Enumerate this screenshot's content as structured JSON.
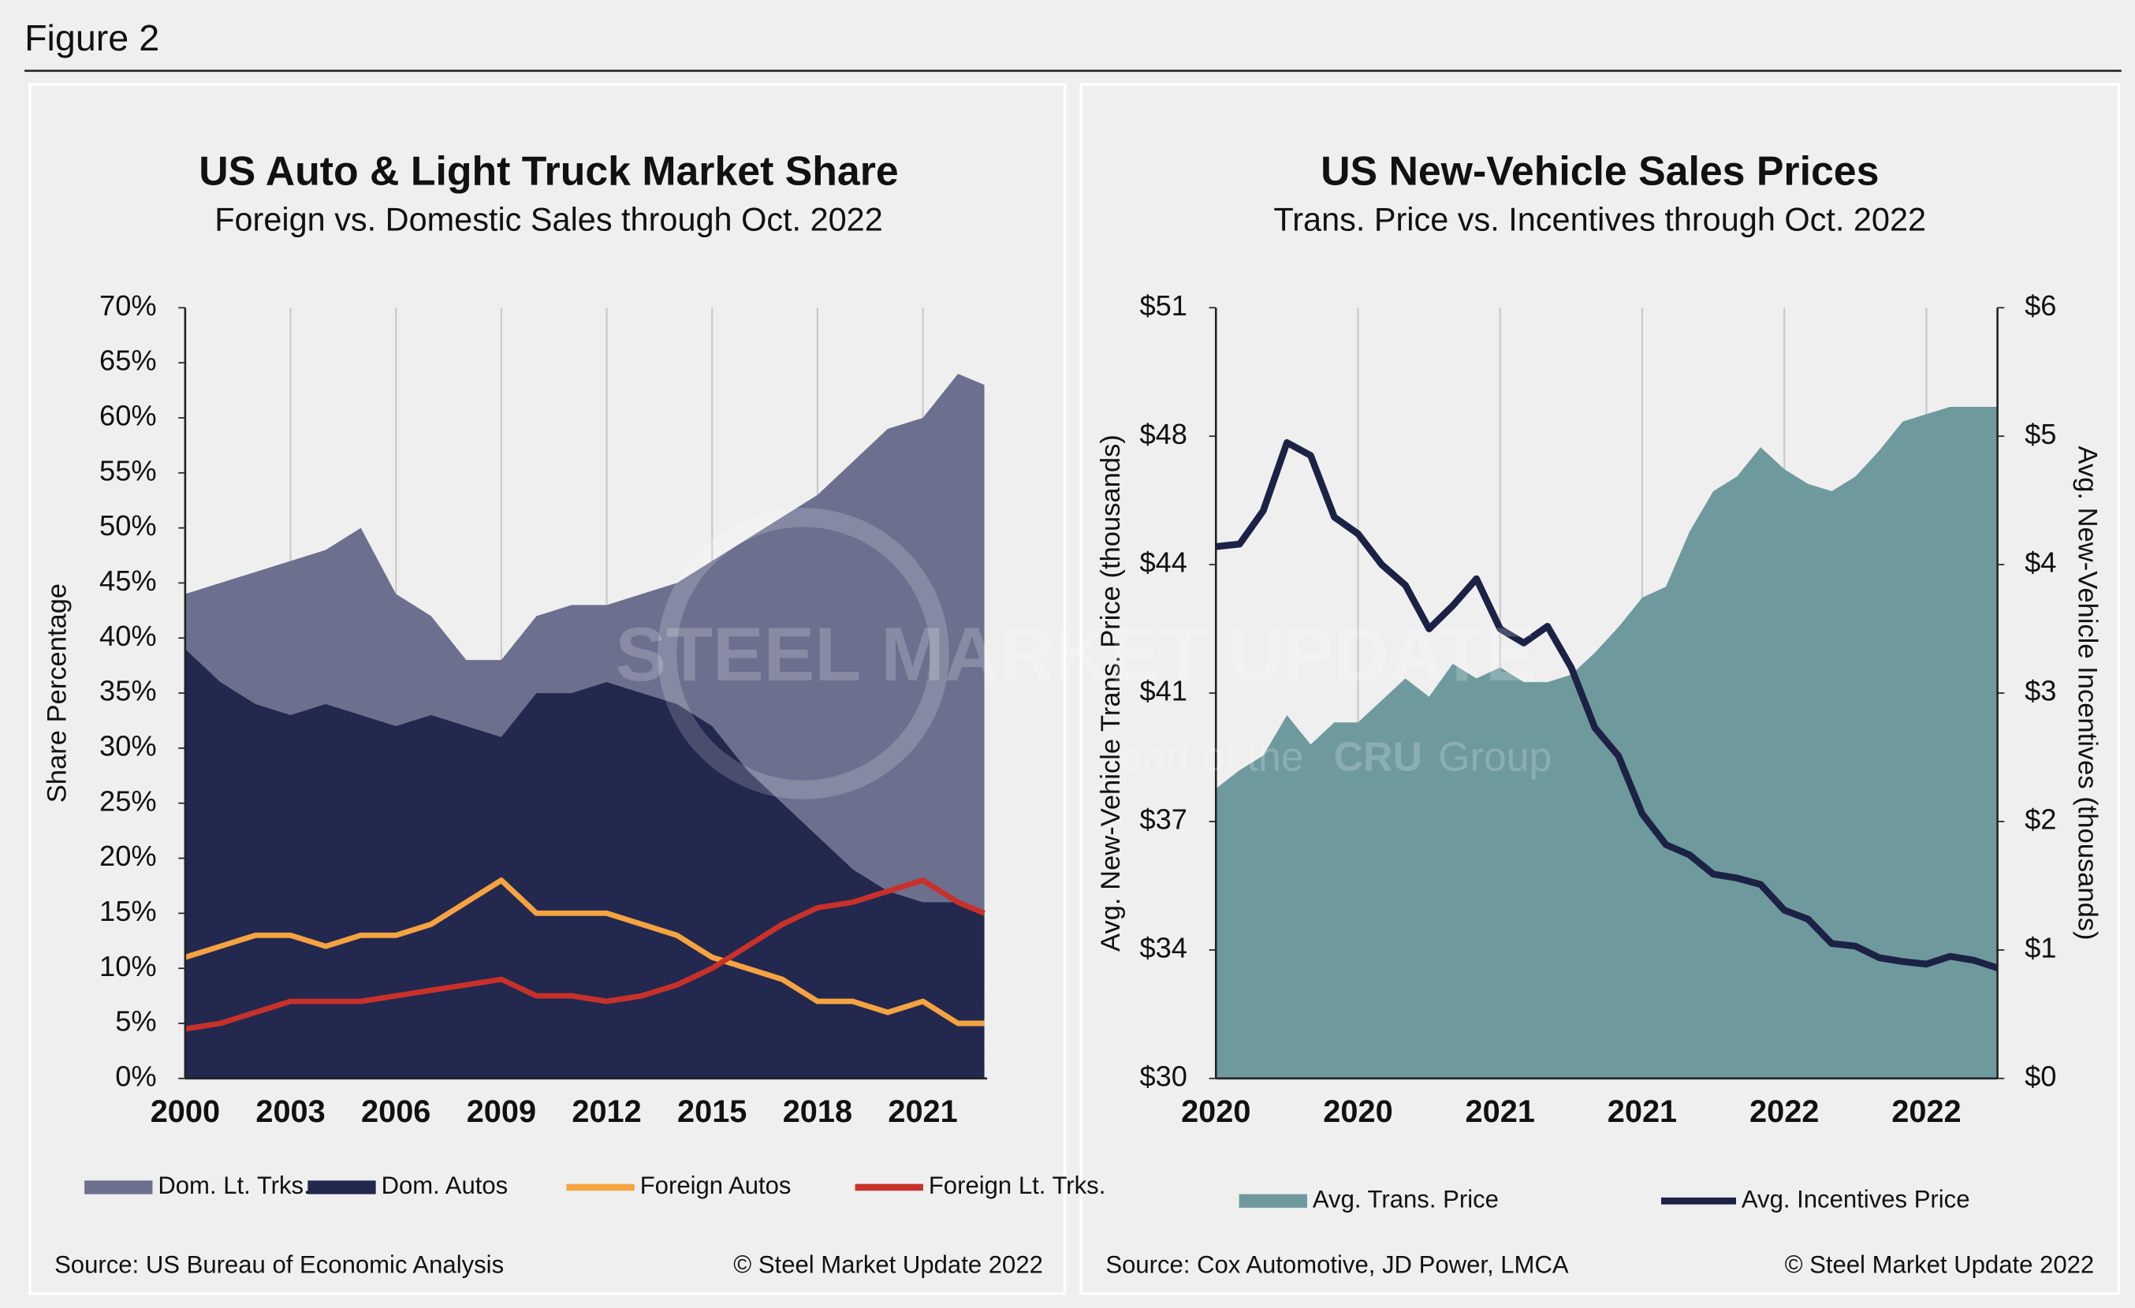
{
  "figure_label": "Figure 2",
  "watermark": {
    "title": "STEEL MARKET UPDATE",
    "sub": "part of the",
    "brand": "CRU",
    "group": "Group"
  },
  "chart_data": [
    {
      "type": "area",
      "title": "US Auto & Light Truck Market Share",
      "subtitle": "Foreign vs. Domestic Sales through Oct. 2022",
      "y_label": "Share Percentage",
      "source": "Source: US Bureau of Economic Analysis",
      "copyright": "© Steel Market Update 2022",
      "grid": "x",
      "x": [
        2000,
        2001,
        2002,
        2003,
        2004,
        2005,
        2006,
        2007,
        2008,
        2009,
        2010,
        2011,
        2012,
        2013,
        2014,
        2015,
        2016,
        2017,
        2018,
        2019,
        2020,
        2021,
        2022,
        2022.75
      ],
      "xlim": [
        2000,
        2022.83
      ],
      "xticks": [
        2000,
        2003,
        2006,
        2009,
        2012,
        2015,
        2018,
        2021
      ],
      "ylim": [
        0,
        70
      ],
      "yticks": [
        {
          "value": 0,
          "label": "0%"
        },
        {
          "value": 5,
          "label": "5%"
        },
        {
          "value": 10,
          "label": "10%"
        },
        {
          "value": 15,
          "label": "15%"
        },
        {
          "value": 20,
          "label": "20%"
        },
        {
          "value": 25,
          "label": "25%"
        },
        {
          "value": 30,
          "label": "30%"
        },
        {
          "value": 35,
          "label": "35%"
        },
        {
          "value": 40,
          "label": "40%"
        },
        {
          "value": 45,
          "label": "45%"
        },
        {
          "value": 50,
          "label": "50%"
        },
        {
          "value": 55,
          "label": "55%"
        },
        {
          "value": 60,
          "label": "60%"
        },
        {
          "value": 65,
          "label": "65%"
        },
        {
          "value": 70,
          "label": "70%"
        }
      ],
      "series": [
        {
          "name": "Dom. Lt. Trks.",
          "style": "area",
          "color": "#6c6f8e",
          "values": [
            44,
            45,
            46,
            47,
            48,
            50,
            44,
            42,
            38,
            38,
            42,
            43,
            43,
            44,
            45,
            47,
            49,
            51,
            53,
            56,
            59,
            60,
            64,
            63
          ]
        },
        {
          "name": "Dom. Autos",
          "style": "area",
          "color": "#23284f",
          "values": [
            39,
            36,
            34,
            33,
            34,
            33,
            32,
            33,
            32,
            31,
            35,
            35,
            36,
            35,
            34,
            32,
            28,
            25,
            22,
            19,
            17,
            16,
            16,
            15
          ]
        },
        {
          "name": "Foreign Autos",
          "style": "line",
          "color": "#f5a340",
          "values": [
            11,
            12,
            13,
            13,
            12,
            13,
            13,
            14,
            16,
            18,
            15,
            15,
            15,
            14,
            13,
            11,
            10,
            9,
            7,
            7,
            6,
            7,
            5,
            5
          ]
        },
        {
          "name": "Foreign Lt. Trks.",
          "style": "line",
          "color": "#c8312a",
          "values": [
            4.5,
            5,
            6,
            7,
            7,
            7,
            7.5,
            8,
            8.5,
            9,
            7.5,
            7.5,
            7,
            7.5,
            8.5,
            10,
            12,
            14,
            15.5,
            16,
            17,
            18,
            16,
            15
          ]
        }
      ]
    },
    {
      "type": "area",
      "title": "US New-Vehicle Sales Prices",
      "subtitle": "Trans. Price vs. Incentives through Oct. 2022",
      "y_label": "Avg. New-Vehicle Trans. Price (thousands)",
      "y2_label": "Avg. New-Vehicle Incentives (thousands)",
      "source": "Source: Cox Automotive, JD Power, LMCA",
      "copyright": "© Steel Market Update 2022",
      "grid": "x",
      "categories": [
        "2020",
        null,
        null,
        null,
        null,
        null,
        "2020",
        null,
        null,
        null,
        null,
        null,
        "2021",
        null,
        null,
        null,
        null,
        null,
        "2021",
        null,
        null,
        null,
        null,
        null,
        "2022",
        null,
        null,
        null,
        null,
        null,
        "2022",
        null,
        null,
        null
      ],
      "ylim": [
        30,
        51
      ],
      "yticks": [
        {
          "value": 30,
          "label": "$30"
        },
        {
          "value": 33.5,
          "label": "$34"
        },
        {
          "value": 37,
          "label": "$37"
        },
        {
          "value": 40.5,
          "label": "$41"
        },
        {
          "value": 44,
          "label": "$44"
        },
        {
          "value": 47.5,
          "label": "$48"
        },
        {
          "value": 51,
          "label": "$51"
        }
      ],
      "y2lim": [
        0,
        6
      ],
      "y2ticks": [
        {
          "value": 0,
          "label": "$0"
        },
        {
          "value": 1,
          "label": "$1"
        },
        {
          "value": 2,
          "label": "$2"
        },
        {
          "value": 3,
          "label": "$3"
        },
        {
          "value": 4,
          "label": "$4"
        },
        {
          "value": 5,
          "label": "$5"
        },
        {
          "value": 6,
          "label": "$6"
        }
      ],
      "series": [
        {
          "name": "Avg. Trans. Price",
          "style": "area",
          "color": "#6f9a9d",
          "values": [
            37.9,
            38.4,
            38.8,
            39.9,
            39.1,
            39.7,
            39.7,
            40.3,
            40.9,
            40.4,
            41.3,
            40.9,
            41.2,
            40.8,
            40.8,
            41.0,
            41.6,
            42.3,
            43.1,
            43.4,
            44.9,
            46.0,
            46.4,
            47.2,
            46.6,
            46.2,
            46.0,
            46.4,
            47.1,
            47.9,
            48.1,
            48.3,
            48.3,
            48.3
          ]
        },
        {
          "name": "Avg. Incentives Price",
          "style": "line",
          "axis": "y2",
          "color": "#1c2245",
          "values": [
            4.14,
            4.16,
            4.42,
            4.95,
            4.85,
            4.37,
            4.24,
            4.0,
            3.84,
            3.5,
            3.68,
            3.89,
            3.5,
            3.39,
            3.52,
            3.2,
            2.73,
            2.51,
            2.06,
            1.82,
            1.74,
            1.59,
            1.56,
            1.51,
            1.31,
            1.24,
            1.05,
            1.03,
            0.94,
            0.91,
            0.89,
            0.95,
            0.92,
            0.86
          ]
        }
      ]
    }
  ]
}
